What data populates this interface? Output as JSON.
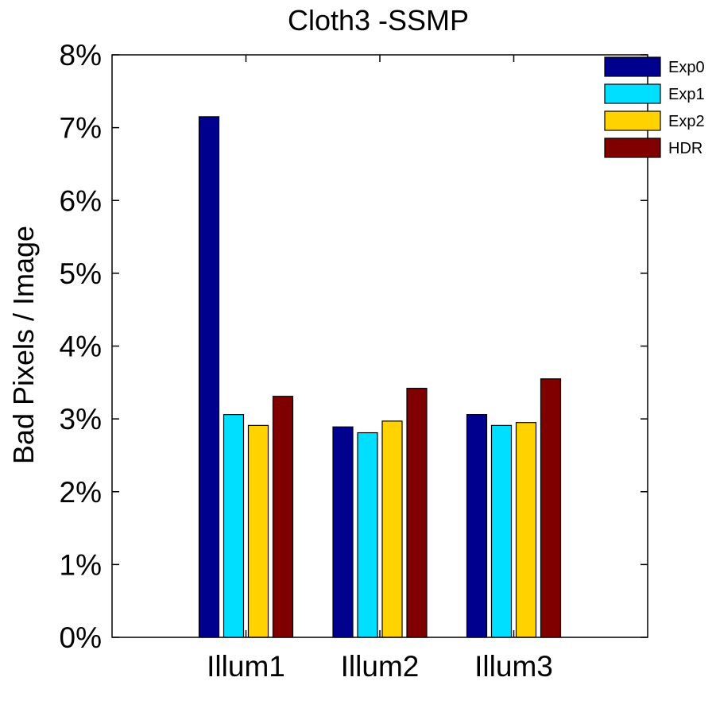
{
  "chart_data": {
    "type": "bar",
    "title": "Cloth3 -SSMP",
    "xlabel": "",
    "ylabel": "Bad Pixels / Image",
    "categories": [
      "Illum1",
      "Illum2",
      "Illum3"
    ],
    "ylim": [
      0,
      8
    ],
    "yticks": [
      "0%",
      "1%",
      "2%",
      "3%",
      "4%",
      "5%",
      "6%",
      "7%",
      "8%"
    ],
    "series": [
      {
        "name": "Exp0",
        "color": "#00008f",
        "values": [
          7.15,
          2.89,
          3.06
        ]
      },
      {
        "name": "Exp1",
        "color": "#00dfff",
        "values": [
          3.06,
          2.81,
          2.91
        ]
      },
      {
        "name": "Exp2",
        "color": "#ffd200",
        "values": [
          2.91,
          2.97,
          2.95
        ]
      },
      {
        "name": "HDR",
        "color": "#800000",
        "values": [
          3.31,
          3.42,
          3.55
        ]
      }
    ],
    "legend": "top-right",
    "grid": false
  }
}
